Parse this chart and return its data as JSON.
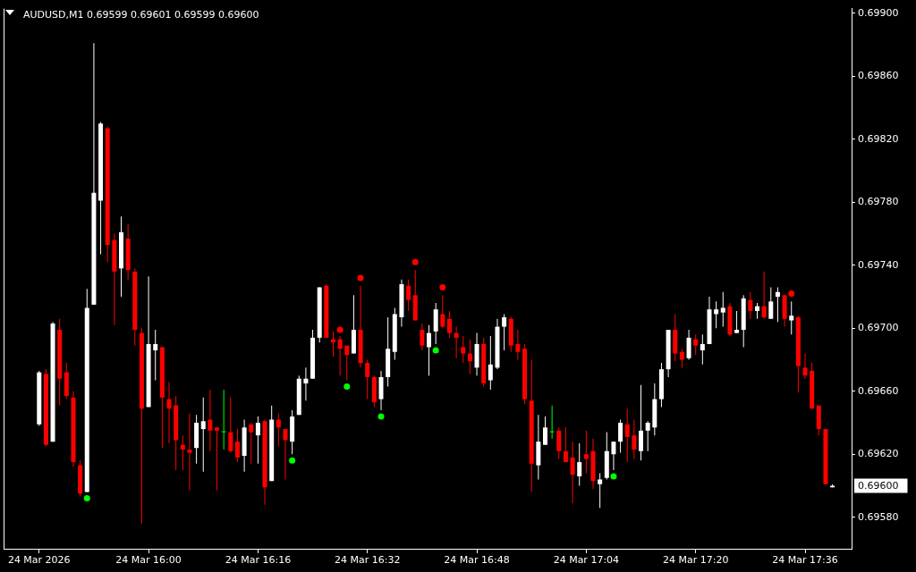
{
  "chart_data": {
    "type": "candlestick",
    "title": "AUDUSD,M1 0.69599 0.69601 0.69599 0.69600",
    "categories": [
      "24 Mar 2026",
      null,
      null,
      null,
      null,
      null,
      null,
      null,
      null,
      null,
      null,
      null,
      null,
      null,
      null,
      null,
      "24 Mar 16:00",
      null,
      null,
      null,
      null,
      null,
      null,
      null,
      null,
      null,
      null,
      null,
      null,
      null,
      null,
      null,
      "24 Mar 16:16",
      null,
      null,
      null,
      null,
      null,
      null,
      null,
      null,
      null,
      null,
      null,
      null,
      null,
      null,
      null,
      "24 Mar 16:32",
      null,
      null,
      null,
      null,
      null,
      null,
      null,
      null,
      null,
      null,
      null,
      null,
      null,
      null,
      null,
      "24 Mar 16:48",
      null,
      null,
      null,
      null,
      null,
      null,
      null,
      null,
      null,
      null,
      null,
      null,
      null,
      null,
      null,
      "24 Mar 17:04",
      null,
      null,
      null,
      null,
      null,
      null,
      null,
      null,
      null,
      null,
      null,
      null,
      null,
      null,
      null,
      "24 Mar 17:20",
      null,
      null,
      null,
      null,
      null,
      null,
      null,
      null,
      null,
      null,
      null,
      null,
      null,
      null,
      null,
      "24 Mar 17:36",
      null,
      null,
      null,
      null
    ],
    "ohlc": [
      [
        0.69639,
        0.69673,
        0.69638,
        0.69672
      ],
      [
        0.69671,
        0.69674,
        0.69625,
        0.69626
      ],
      [
        0.69628,
        0.69704,
        0.69628,
        0.69703
      ],
      [
        0.69699,
        0.69706,
        0.69651,
        0.69668
      ],
      [
        0.69672,
        0.69678,
        0.69655,
        0.69657
      ],
      [
        0.69656,
        0.6966,
        0.69612,
        0.69615
      ],
      [
        0.69613,
        0.69616,
        0.69593,
        0.69595
      ],
      [
        0.69596,
        0.69725,
        0.69596,
        0.69713
      ],
      [
        0.69715,
        0.69881,
        0.69715,
        0.69786
      ],
      [
        0.69781,
        0.69831,
        0.69747,
        0.6983
      ],
      [
        0.69827,
        0.69828,
        0.69742,
        0.69753
      ],
      [
        0.69756,
        0.6976,
        0.69702,
        0.69736
      ],
      [
        0.69738,
        0.69771,
        0.6972,
        0.69761
      ],
      [
        0.69757,
        0.69766,
        0.69731,
        0.69737
      ],
      [
        0.69736,
        0.69738,
        0.69689,
        0.69699
      ],
      [
        0.69697,
        0.697,
        0.69576,
        0.69649
      ],
      [
        0.6965,
        0.69733,
        0.6965,
        0.6969
      ],
      [
        0.69686,
        0.69699,
        0.69667,
        0.6969
      ],
      [
        0.69688,
        0.69688,
        0.69624,
        0.69656
      ],
      [
        0.69655,
        0.69666,
        0.69627,
        0.69649
      ],
      [
        0.69651,
        0.69657,
        0.6961,
        0.69629
      ],
      [
        0.69626,
        0.69632,
        0.6961,
        0.69623
      ],
      [
        0.69623,
        0.69646,
        0.69597,
        0.69621
      ],
      [
        0.69624,
        0.69645,
        0.69614,
        0.6964
      ],
      [
        0.69636,
        0.69656,
        0.69609,
        0.69641
      ],
      [
        0.69642,
        0.69661,
        0.69622,
        0.69635
      ],
      [
        0.69637,
        0.69637,
        0.69597,
        0.69635
      ],
      [
        0.69634,
        0.69661,
        0.69623,
        0.69634
      ],
      [
        0.69634,
        0.69656,
        0.69621,
        0.69622
      ],
      [
        0.69628,
        0.69636,
        0.69615,
        0.69618
      ],
      [
        0.69619,
        0.69642,
        0.69609,
        0.69637
      ],
      [
        0.69639,
        0.6964,
        0.69614,
        0.69634
      ],
      [
        0.69632,
        0.69644,
        0.69614,
        0.6964
      ],
      [
        0.69641,
        0.69642,
        0.69588,
        0.69599
      ],
      [
        0.69603,
        0.69651,
        0.69603,
        0.69642
      ],
      [
        0.69642,
        0.69646,
        0.69625,
        0.69637
      ],
      [
        0.69636,
        0.69636,
        0.69604,
        0.69629
      ],
      [
        0.69628,
        0.69648,
        0.6962,
        0.69644
      ],
      [
        0.69645,
        0.6967,
        0.69645,
        0.69668
      ],
      [
        0.69665,
        0.69675,
        0.69654,
        0.69668
      ],
      [
        0.69668,
        0.69699,
        0.69668,
        0.69694
      ],
      [
        0.69694,
        0.69726,
        0.69691,
        0.69726
      ],
      [
        0.69727,
        0.69728,
        0.69694,
        0.69694
      ],
      [
        0.69693,
        0.69698,
        0.69682,
        0.69691
      ],
      [
        0.69693,
        0.69695,
        0.6967,
        0.69687
      ],
      [
        0.69689,
        0.69689,
        0.69667,
        0.69683
      ],
      [
        0.69684,
        0.69721,
        0.69684,
        0.69699
      ],
      [
        0.69699,
        0.69727,
        0.69675,
        0.69678
      ],
      [
        0.69678,
        0.6968,
        0.69655,
        0.69669
      ],
      [
        0.69669,
        0.6967,
        0.6965,
        0.69653
      ],
      [
        0.69655,
        0.69673,
        0.69648,
        0.69669
      ],
      [
        0.69669,
        0.69707,
        0.69663,
        0.69687
      ],
      [
        0.69685,
        0.69713,
        0.6968,
        0.69709
      ],
      [
        0.69707,
        0.69731,
        0.69701,
        0.69728
      ],
      [
        0.69727,
        0.69731,
        0.69711,
        0.69718
      ],
      [
        0.69721,
        0.69737,
        0.69705,
        0.69705
      ],
      [
        0.69699,
        0.69703,
        0.69686,
        0.69689
      ],
      [
        0.69688,
        0.69702,
        0.6967,
        0.69697
      ],
      [
        0.69698,
        0.69716,
        0.6969,
        0.69712
      ],
      [
        0.69709,
        0.69721,
        0.697,
        0.69701
      ],
      [
        0.69706,
        0.69711,
        0.69694,
        0.69697
      ],
      [
        0.69697,
        0.69701,
        0.69681,
        0.69694
      ],
      [
        0.69688,
        0.69695,
        0.69678,
        0.69684
      ],
      [
        0.69684,
        0.69693,
        0.69671,
        0.69679
      ],
      [
        0.69675,
        0.69697,
        0.6967,
        0.6969
      ],
      [
        0.6969,
        0.69694,
        0.69663,
        0.69665
      ],
      [
        0.69667,
        0.69695,
        0.69661,
        0.69677
      ],
      [
        0.69675,
        0.69706,
        0.69674,
        0.69701
      ],
      [
        0.69701,
        0.69709,
        0.69686,
        0.69707
      ],
      [
        0.69706,
        0.69707,
        0.69685,
        0.69689
      ],
      [
        0.6969,
        0.69699,
        0.6968,
        0.69685
      ],
      [
        0.69687,
        0.6969,
        0.69652,
        0.69655
      ],
      [
        0.69654,
        0.6968,
        0.69596,
        0.69614
      ],
      [
        0.69613,
        0.69645,
        0.69604,
        0.69628
      ],
      [
        0.69626,
        0.69644,
        0.69626,
        0.69637
      ],
      [
        0.69634,
        0.69651,
        0.6963,
        0.69634
      ],
      [
        0.69635,
        0.69637,
        0.69617,
        0.69622
      ],
      [
        0.69622,
        0.69637,
        0.69615,
        0.69615
      ],
      [
        0.69618,
        0.69628,
        0.69589,
        0.69607
      ],
      [
        0.69606,
        0.69627,
        0.696,
        0.69615
      ],
      [
        0.6962,
        0.69635,
        0.69608,
        0.69617
      ],
      [
        0.69622,
        0.6963,
        0.69598,
        0.69603
      ],
      [
        0.69601,
        0.69608,
        0.69586,
        0.69604
      ],
      [
        0.69605,
        0.69634,
        0.69604,
        0.69622
      ],
      [
        0.6962,
        0.69628,
        0.6961,
        0.69628
      ],
      [
        0.69628,
        0.69642,
        0.69621,
        0.6964
      ],
      [
        0.69639,
        0.69649,
        0.69615,
        0.69631
      ],
      [
        0.69632,
        0.69642,
        0.69617,
        0.69623
      ],
      [
        0.69622,
        0.69664,
        0.69616,
        0.69635
      ],
      [
        0.69635,
        0.69641,
        0.69622,
        0.6964
      ],
      [
        0.69637,
        0.69665,
        0.69632,
        0.69655
      ],
      [
        0.69655,
        0.69678,
        0.6965,
        0.69674
      ],
      [
        0.69674,
        0.69699,
        0.69669,
        0.69699
      ],
      [
        0.69699,
        0.69709,
        0.69679,
        0.69684
      ],
      [
        0.69685,
        0.69687,
        0.69675,
        0.6968
      ],
      [
        0.69681,
        0.69699,
        0.6968,
        0.69694
      ],
      [
        0.69693,
        0.69696,
        0.69683,
        0.69689
      ],
      [
        0.69686,
        0.69696,
        0.69677,
        0.6969
      ],
      [
        0.6969,
        0.6972,
        0.6969,
        0.69712
      ],
      [
        0.69709,
        0.69717,
        0.697,
        0.69712
      ],
      [
        0.6971,
        0.69723,
        0.69701,
        0.69713
      ],
      [
        0.69714,
        0.69716,
        0.69695,
        0.69696
      ],
      [
        0.69697,
        0.69711,
        0.69697,
        0.69699
      ],
      [
        0.69699,
        0.69721,
        0.69688,
        0.69719
      ],
      [
        0.69718,
        0.69723,
        0.69706,
        0.69711
      ],
      [
        0.69711,
        0.69716,
        0.69706,
        0.69714
      ],
      [
        0.69714,
        0.69736,
        0.69706,
        0.69707
      ],
      [
        0.69706,
        0.69726,
        0.69706,
        0.69717
      ],
      [
        0.6972,
        0.69726,
        0.69704,
        0.69723
      ],
      [
        0.69721,
        0.69721,
        0.69701,
        0.69706
      ],
      [
        0.69705,
        0.69717,
        0.69696,
        0.69708
      ],
      [
        0.69707,
        0.69708,
        0.69659,
        0.69676
      ],
      [
        0.69675,
        0.69684,
        0.69668,
        0.6967
      ],
      [
        0.69673,
        0.69678,
        0.69649,
        0.69649
      ],
      [
        0.69651,
        0.69651,
        0.69632,
        0.69636
      ],
      [
        0.69636,
        0.69636,
        0.69601,
        0.69601
      ],
      [
        0.69599,
        0.69601,
        0.69599,
        0.696
      ]
    ],
    "colors": [
      "#ffffff",
      "#ff0000",
      "#ffffff",
      "#ff0000",
      "#ff0000",
      "#ff0000",
      "#ff0000",
      "#ffffff",
      "#ffffff",
      "#ffffff",
      "#ff0000",
      "#ff0000",
      "#ffffff",
      "#ff0000",
      "#ff0000",
      "#ff0000",
      "#ffffff",
      "#ffffff",
      "#ff0000",
      "#ff0000",
      "#ff0000",
      "#ff0000",
      "#ff0000",
      "#ffffff",
      "#ffffff",
      "#ff0000",
      "#ff0000",
      "#00ff00",
      "#ff0000",
      "#ff0000",
      "#ffffff",
      "#ff0000",
      "#ffffff",
      "#ff0000",
      "#ffffff",
      "#ff0000",
      "#ff0000",
      "#ffffff",
      "#ffffff",
      "#ffffff",
      "#ffffff",
      "#ffffff",
      "#ff0000",
      "#ff0000",
      "#ff0000",
      "#ff0000",
      "#ffffff",
      "#ff0000",
      "#ff0000",
      "#ff0000",
      "#ffffff",
      "#ffffff",
      "#ffffff",
      "#ffffff",
      "#ff0000",
      "#ff0000",
      "#ff0000",
      "#ffffff",
      "#ffffff",
      "#ff0000",
      "#ff0000",
      "#ff0000",
      "#ff0000",
      "#ff0000",
      "#ffffff",
      "#ff0000",
      "#ffffff",
      "#ffffff",
      "#ffffff",
      "#ff0000",
      "#ff0000",
      "#ff0000",
      "#ff0000",
      "#ffffff",
      "#ffffff",
      "#00ff00",
      "#ff0000",
      "#ff0000",
      "#ff0000",
      "#ffffff",
      "#ff0000",
      "#ff0000",
      "#ffffff",
      "#ffffff",
      "#ffffff",
      "#ffffff",
      "#ff0000",
      "#ff0000",
      "#ffffff",
      "#ffffff",
      "#ffffff",
      "#ffffff",
      "#ffffff",
      "#ff0000",
      "#ff0000",
      "#ffffff",
      "#ff0000",
      "#ffffff",
      "#ffffff",
      "#ffffff",
      "#ffffff",
      "#ff0000",
      "#ffffff",
      "#ffffff",
      "#ff0000",
      "#ffffff",
      "#ff0000",
      "#ffffff",
      "#ffffff",
      "#ff0000",
      "#ffffff",
      "#ff0000",
      "#ff0000",
      "#ff0000",
      "#ff0000",
      "#ff0000",
      "#ffffff"
    ],
    "series": [
      {
        "type": "scatter",
        "color": "#00ff00",
        "values": [
          null,
          null,
          null,
          null,
          null,
          null,
          null,
          0.69592,
          null,
          null,
          null,
          null,
          null,
          null,
          null,
          null,
          null,
          null,
          null,
          null,
          null,
          null,
          null,
          null,
          null,
          null,
          null,
          null,
          null,
          null,
          null,
          null,
          null,
          null,
          null,
          null,
          null,
          0.69616,
          null,
          null,
          null,
          null,
          null,
          null,
          null,
          0.69663,
          null,
          null,
          null,
          null,
          0.69644,
          null,
          null,
          null,
          null,
          null,
          null,
          null,
          0.69686,
          null,
          null,
          null,
          null,
          null,
          null,
          null,
          null,
          null,
          null,
          null,
          null,
          null,
          null,
          null,
          null,
          null,
          null,
          null,
          null,
          null,
          null,
          null,
          null,
          null,
          0.69606,
          null,
          null,
          null,
          null,
          null,
          null,
          null,
          null,
          null,
          null,
          null,
          null,
          null,
          null,
          null,
          null,
          null,
          null,
          null,
          null,
          null,
          null,
          null,
          null,
          null,
          null,
          null,
          null,
          null,
          null,
          null,
          null
        ]
      },
      {
        "type": "scatter",
        "color": "#ff0000",
        "values": [
          null,
          null,
          null,
          null,
          null,
          null,
          null,
          null,
          null,
          null,
          null,
          null,
          null,
          null,
          null,
          null,
          null,
          null,
          null,
          null,
          null,
          null,
          null,
          null,
          null,
          null,
          null,
          null,
          null,
          null,
          null,
          null,
          null,
          null,
          null,
          null,
          null,
          null,
          null,
          null,
          null,
          null,
          null,
          null,
          0.69699,
          null,
          null,
          0.69732,
          null,
          null,
          null,
          null,
          null,
          null,
          null,
          0.69742,
          null,
          null,
          null,
          0.69726,
          null,
          null,
          null,
          null,
          null,
          null,
          null,
          null,
          null,
          null,
          null,
          null,
          null,
          null,
          null,
          null,
          null,
          null,
          null,
          null,
          null,
          null,
          null,
          null,
          null,
          null,
          null,
          null,
          null,
          null,
          null,
          null,
          null,
          null,
          null,
          null,
          null,
          null,
          null,
          null,
          null,
          null,
          null,
          null,
          null,
          null,
          null,
          null,
          null,
          null,
          0.69722,
          null,
          null,
          null,
          null,
          null,
          null
        ]
      }
    ],
    "marker": "circle",
    "ylim": [
      0.6956,
      0.69903
    ],
    "yticks": [
      {
        "value": 0.6958,
        "label": "0.69580"
      },
      {
        "value": 0.6962,
        "label": "0.69620"
      },
      {
        "value": 0.6966,
        "label": "0.69660"
      },
      {
        "value": 0.697,
        "label": "0.69700"
      },
      {
        "value": 0.6974,
        "label": "0.69740"
      },
      {
        "value": 0.6978,
        "label": "0.69780"
      },
      {
        "value": 0.6982,
        "label": "0.69820"
      },
      {
        "value": 0.6986,
        "label": "0.69860"
      },
      {
        "value": 0.699,
        "label": "0.69900"
      }
    ],
    "annotations": [
      "0.69600"
    ]
  }
}
